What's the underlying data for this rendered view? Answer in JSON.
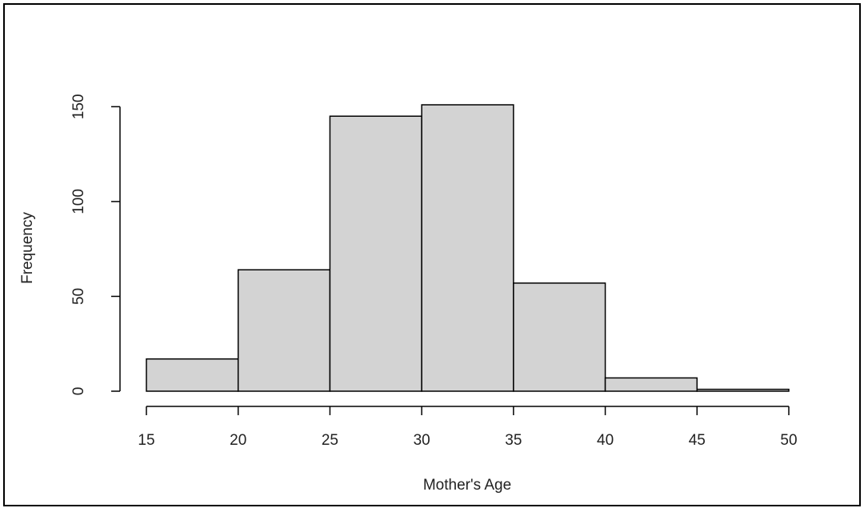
{
  "chart_data": {
    "type": "bar",
    "subtype": "histogram",
    "title": "",
    "xlabel": "Mother's Age",
    "ylabel": "Frequency",
    "bins": [
      {
        "from": 15,
        "to": 20,
        "count": 17
      },
      {
        "from": 20,
        "to": 25,
        "count": 64
      },
      {
        "from": 25,
        "to": 30,
        "count": 145
      },
      {
        "from": 30,
        "to": 35,
        "count": 151
      },
      {
        "from": 35,
        "to": 40,
        "count": 57
      },
      {
        "from": 40,
        "to": 45,
        "count": 7
      },
      {
        "from": 45,
        "to": 50,
        "count": 1
      }
    ],
    "x_ticks": [
      15,
      20,
      25,
      30,
      35,
      40,
      45,
      50
    ],
    "y_ticks": [
      0,
      50,
      100,
      150
    ],
    "xlim": [
      15,
      50
    ],
    "ylim": [
      0,
      151
    ],
    "grid": false,
    "legend": "none",
    "bar_fill": "#d3d3d3",
    "bar_stroke": "#000000"
  }
}
